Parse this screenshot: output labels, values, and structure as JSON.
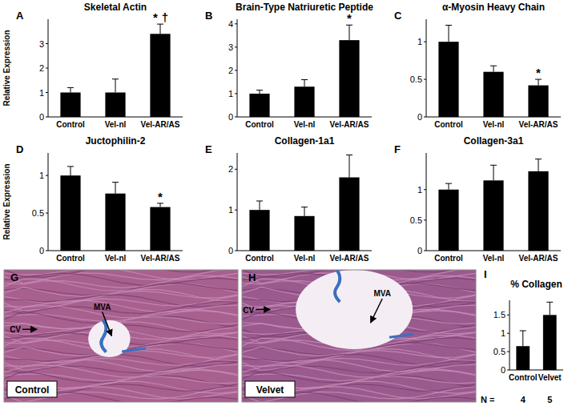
{
  "chart_data": [
    {
      "type": "bar",
      "panel_label": "A",
      "title": "Skeletal Actin",
      "y_label": "Relative Expression",
      "categories": [
        "Control",
        "Vel-nl",
        "Vel-AR/AS"
      ],
      "values": [
        1,
        1,
        3.4
      ],
      "errors": [
        0.2,
        0.55,
        0.4
      ],
      "color": "#000000",
      "ylim": [
        0,
        4
      ],
      "yticks": [
        0,
        1,
        2,
        3
      ],
      "annotations": [
        {
          "text": "*",
          "category": 2
        },
        {
          "text": "†",
          "category": 2
        }
      ]
    },
    {
      "type": "bar",
      "panel_label": "B",
      "title": "Brain-Type Natriuretic Peptide",
      "categories": [
        "Control",
        "Vel-nl",
        "Vel-AR/AS"
      ],
      "values": [
        1,
        1.3,
        3.3
      ],
      "errors": [
        0.15,
        0.3,
        0.65
      ],
      "color": "#000000",
      "ylim": [
        0,
        4.2
      ],
      "yticks": [
        0,
        1,
        2,
        3,
        4
      ],
      "annotations": [
        {
          "text": "*",
          "category": 2
        }
      ]
    },
    {
      "type": "bar",
      "panel_label": "C",
      "title": "α-Myosin Heavy Chain",
      "categories": [
        "Control",
        "Vel-nl",
        "Vel-AR/AS"
      ],
      "values": [
        1,
        0.6,
        0.42
      ],
      "errors": [
        0.22,
        0.08,
        0.08
      ],
      "color": "#000000",
      "ylim": [
        0,
        1.3
      ],
      "yticks": [
        0,
        0.5,
        1
      ],
      "annotations": [
        {
          "text": "*",
          "category": 2
        }
      ]
    },
    {
      "type": "bar",
      "panel_label": "D",
      "title": "Juctophilin-2",
      "y_label": "Relative Expression",
      "categories": [
        "Control",
        "Vel-nl",
        "Vel-AR/AS"
      ],
      "values": [
        1,
        0.76,
        0.58
      ],
      "errors": [
        0.12,
        0.15,
        0.05
      ],
      "color": "#000000",
      "ylim": [
        0,
        1.3
      ],
      "yticks": [
        0,
        0.5,
        1
      ],
      "annotations": [
        {
          "text": "*",
          "category": 2
        }
      ]
    },
    {
      "type": "bar",
      "panel_label": "E",
      "title": "Collagen-1a1",
      "categories": [
        "Control",
        "Vel-nl",
        "Vel-AR/AS"
      ],
      "values": [
        1,
        0.85,
        1.8
      ],
      "errors": [
        0.22,
        0.22,
        0.55
      ],
      "color": "#000000",
      "ylim": [
        0,
        2.4
      ],
      "yticks": [
        0,
        1,
        2
      ]
    },
    {
      "type": "bar",
      "panel_label": "F",
      "title": "Collagen-3a1",
      "categories": [
        "Control",
        "Vel-nl",
        "Vel-AR/AS"
      ],
      "values": [
        1,
        1.15,
        1.3
      ],
      "errors": [
        0.1,
        0.25,
        0.2
      ],
      "color": "#000000",
      "ylim": [
        0,
        1.6
      ],
      "yticks": [
        0,
        0.5,
        1
      ]
    },
    {
      "type": "bar",
      "panel_label": "I",
      "title": "% Collagen",
      "categories": [
        "Control",
        "Velvet"
      ],
      "values": [
        0.65,
        1.5
      ],
      "errors": [
        0.42,
        0.35
      ],
      "color": "#000000",
      "ylim": [
        0,
        1.9
      ],
      "yticks": [
        0,
        0.5,
        1,
        1.5
      ],
      "sample_label": "N =",
      "sample_sizes": [
        4,
        5
      ]
    }
  ],
  "images": [
    {
      "panel_label": "G",
      "caption": "Control",
      "labels": [
        "CV",
        "MVA"
      ]
    },
    {
      "panel_label": "H",
      "caption": "Velvet",
      "labels": [
        "CV",
        "MVA"
      ]
    }
  ]
}
